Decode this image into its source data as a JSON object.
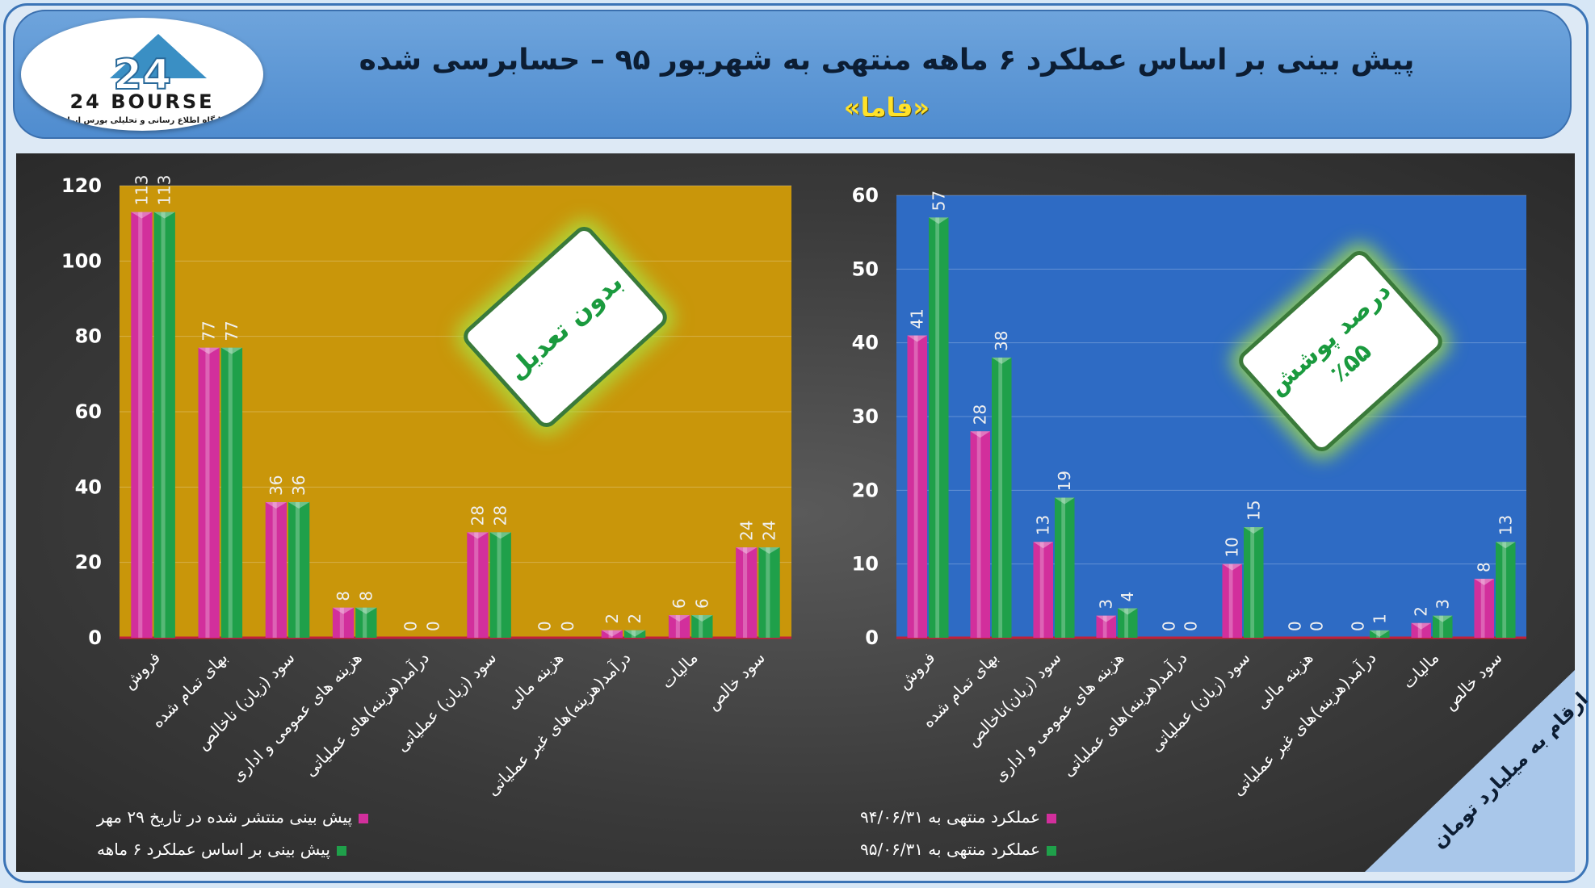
{
  "header": {
    "title": "پیش بینی بر اساس عملکرد ۶ ماهه منتهی به شهریور ۹۵ – حسابرسی شده",
    "subtitle": "«فاما»",
    "logo_text": "24 BOURSE",
    "logo_caption": "پایگاه اطلاع رسانی و تحلیلی بورس ایران"
  },
  "colors": {
    "magenta": "#d22f9c",
    "green": "#1fa04a",
    "left_plot_bg": "#c9960a",
    "right_plot_bg": "#2e6bc4",
    "header": "#5d97d6"
  },
  "stamps": {
    "left": "بدون تعدیل",
    "right_line1": "درصد پوشش",
    "right_line2": "٪۵۵"
  },
  "corner_note": "ارقام به میلیارد تومان",
  "chart_data": [
    {
      "type": "bar",
      "position": "left",
      "categories": [
        "فروش",
        "بهای تمام شده",
        "سود (زیان) ناخالص",
        "هزینه های عمومی و اداری",
        "درآمد(هزینه)های عملیاتی",
        "سود (زیان) عملیاتی",
        "هزینه مالی",
        "درآمد(هزینه)های غیر عملیاتی",
        "مالیات",
        "سود خالص"
      ],
      "series": [
        {
          "name": "پیش بینی منتشر شده در تاریخ ۲۹ مهر",
          "color": "#d22f9c",
          "values": [
            113,
            77,
            36,
            8,
            0,
            28,
            0,
            2,
            6,
            24
          ]
        },
        {
          "name": "پیش بینی بر اساس عملکرد ۶ ماهه",
          "color": "#1fa04a",
          "values": [
            113,
            77,
            36,
            8,
            0,
            28,
            0,
            2,
            6,
            24
          ]
        }
      ],
      "ylim": [
        0,
        120
      ],
      "yticks": [
        0,
        20,
        40,
        60,
        80,
        100,
        120
      ],
      "legend": "bottom-left"
    },
    {
      "type": "bar",
      "position": "right",
      "categories": [
        "فروش",
        "بهای تمام شده",
        "سود (زیان)ناخالص",
        "هزینه های عمومی و اداری",
        "درآمد(هزینه)های عملیاتی",
        "سود (زیان) عملیاتی",
        "هزینه مالی",
        "درآمد(هزینه)های غیر عملیاتی",
        "مالیات",
        "سود خالص"
      ],
      "series": [
        {
          "name": "عملکرد منتهی به ۹۴/۰۶/۳۱",
          "color": "#d22f9c",
          "values": [
            41,
            28,
            13,
            3,
            0,
            10,
            0,
            0,
            2,
            8
          ]
        },
        {
          "name": "عملکرد منتهی به ۹۵/۰۶/۳۱",
          "color": "#1fa04a",
          "values": [
            57,
            38,
            19,
            4,
            0,
            15,
            0,
            1,
            3,
            13
          ]
        }
      ],
      "ylim": [
        0,
        60
      ],
      "yticks": [
        0,
        10,
        20,
        30,
        40,
        50,
        60
      ],
      "legend": "bottom-left"
    }
  ]
}
